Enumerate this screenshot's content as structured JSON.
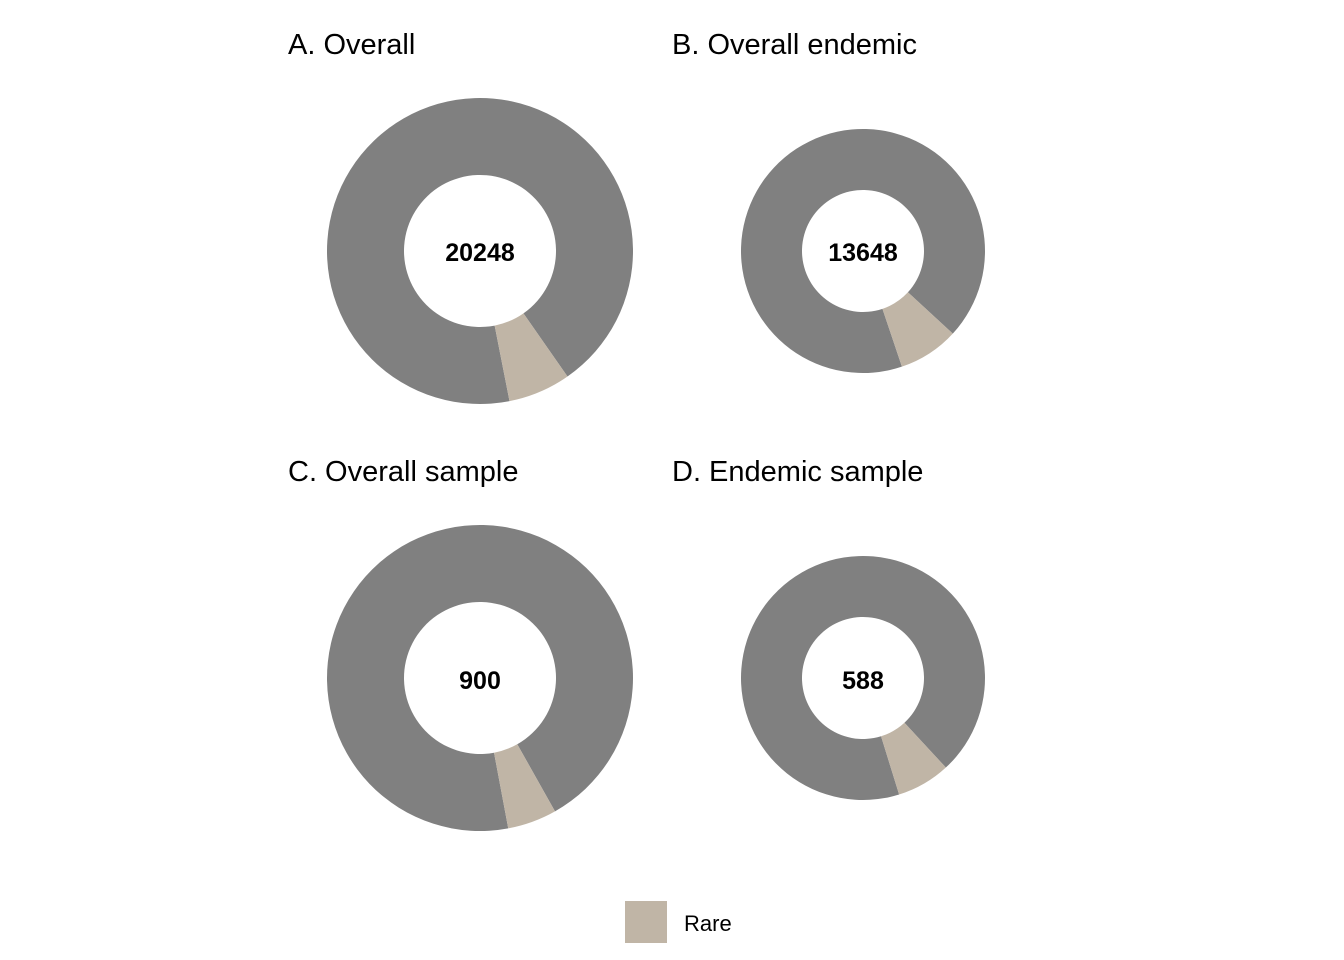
{
  "chart_data": [
    {
      "type": "pie",
      "title": "A. Overall",
      "center_label": "20248",
      "total": 20248,
      "slices": [
        {
          "category": "Rare",
          "fraction": 0.066,
          "color": "#c0b5a6"
        },
        {
          "category": "",
          "fraction": 0.934,
          "color": "#808080"
        }
      ]
    },
    {
      "type": "pie",
      "title": "B. Overall endemic",
      "center_label": "13648",
      "total": 13648,
      "slices": [
        {
          "category": "Rare",
          "fraction": 0.08,
          "color": "#c0b5a6"
        },
        {
          "category": "",
          "fraction": 0.92,
          "color": "#808080"
        }
      ]
    },
    {
      "type": "pie",
      "title": "C. Overall sample",
      "center_label": "900",
      "total": 900,
      "slices": [
        {
          "category": "Rare",
          "fraction": 0.052,
          "color": "#c0b5a6"
        },
        {
          "category": "",
          "fraction": 0.948,
          "color": "#808080"
        }
      ]
    },
    {
      "type": "pie",
      "title": "D. Endemic sample",
      "center_label": "588",
      "total": 588,
      "slices": [
        {
          "category": "Rare",
          "fraction": 0.071,
          "color": "#c0b5a6"
        },
        {
          "category": "",
          "fraction": 0.929,
          "color": "#808080"
        }
      ]
    }
  ],
  "legend": {
    "items": [
      {
        "label": "Rare",
        "color": "#c0b5a6"
      }
    ],
    "placement": "bottom"
  },
  "colors": {
    "rare": "#c0b5a6",
    "other": "#808080",
    "background": "#ffffff"
  }
}
